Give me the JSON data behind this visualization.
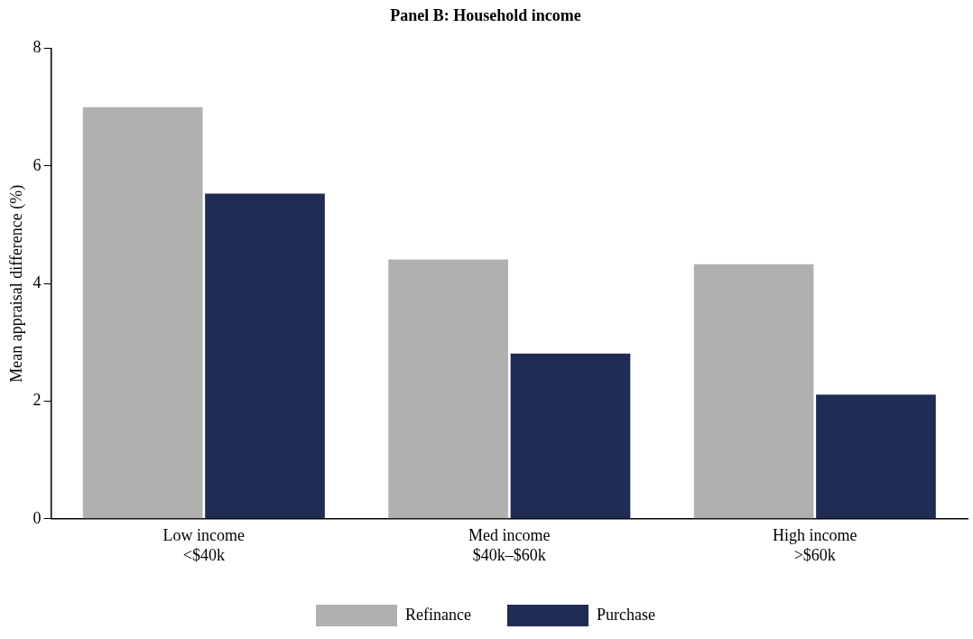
{
  "chart_data": {
    "type": "bar",
    "title": "Panel B: Household income",
    "ylabel": "Mean appraisal difference (%)",
    "categories": [
      "Low income\n<$40k",
      "Med income\n$40k–$60k",
      "High income\n>$60k"
    ],
    "series": [
      {
        "name": "Refinance",
        "color": "#b0b0b0",
        "values": [
          7.0,
          4.41,
          4.33
        ]
      },
      {
        "name": "Purchase",
        "color": "#1f2c53",
        "values": [
          5.53,
          2.81,
          2.11
        ]
      }
    ],
    "ylim": [
      0,
      8
    ],
    "yticks": [
      0,
      2,
      4,
      6,
      8
    ],
    "grid": false,
    "legend": "bottom"
  }
}
